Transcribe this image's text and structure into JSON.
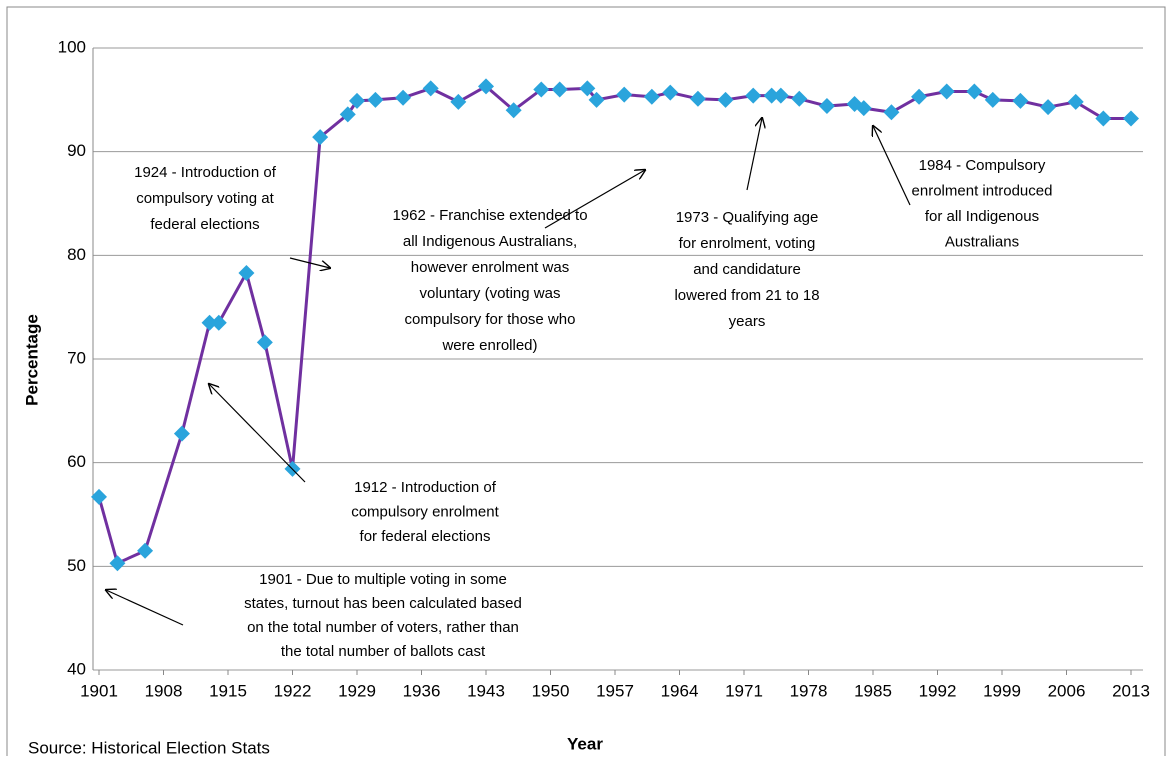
{
  "chart_data": {
    "type": "line",
    "x_label": "Year",
    "y_label": "Percentage",
    "source": "Source: Historical Election Stats",
    "x": [
      1901,
      1903,
      1906,
      1910,
      1913,
      1914,
      1917,
      1919,
      1922,
      1925,
      1928,
      1929,
      1931,
      1934,
      1937,
      1940,
      1943,
      1946,
      1949,
      1951,
      1954,
      1955,
      1958,
      1961,
      1963,
      1966,
      1969,
      1972,
      1974,
      1975,
      1977,
      1980,
      1983,
      1984,
      1987,
      1990,
      1993,
      1996,
      1998,
      2001,
      2004,
      2007,
      2010,
      2013
    ],
    "series": [
      {
        "color": "#7030a0",
        "marker_color": "#2aa4dc",
        "values": [
          56.7,
          50.3,
          51.5,
          62.8,
          73.5,
          73.5,
          78.3,
          71.6,
          59.4,
          91.4,
          93.6,
          94.9,
          95.0,
          95.2,
          96.1,
          94.8,
          96.3,
          94.0,
          96.0,
          96.0,
          96.1,
          95.0,
          95.5,
          95.3,
          95.7,
          95.1,
          95.0,
          95.4,
          95.4,
          95.4,
          95.1,
          94.4,
          94.6,
          94.2,
          93.8,
          95.3,
          95.8,
          95.8,
          95.0,
          94.9,
          94.3,
          94.8,
          93.2,
          93.2
        ]
      }
    ],
    "xlim": [
      1901,
      2013
    ],
    "xticks": [
      1901,
      1908,
      1915,
      1922,
      1929,
      1936,
      1943,
      1950,
      1957,
      1964,
      1971,
      1978,
      1985,
      1992,
      1999,
      2006,
      2013
    ],
    "ylim": [
      40,
      100
    ],
    "yticks": [
      40,
      50,
      60,
      70,
      80,
      90,
      100
    ],
    "grid": true,
    "annotations": [
      {
        "lines": [
          "1924 - Introduction of",
          "compulsory voting at",
          "federal elections"
        ]
      },
      {
        "lines": [
          "1962 - Franchise extended to",
          "all Indigenous Australians,",
          "however enrolment was",
          "voluntary (voting was",
          "compulsory for those who",
          "were enrolled)"
        ]
      },
      {
        "lines": [
          "1973 - Qualifying age",
          "for enrolment, voting",
          "and candidature",
          "lowered from 21 to 18",
          "years"
        ]
      },
      {
        "lines": [
          "1984 - Compulsory",
          "enrolment introduced",
          "for all Indigenous",
          "Australians"
        ]
      },
      {
        "lines": [
          "1912 - Introduction of",
          "compulsory enrolment",
          "for federal elections"
        ]
      },
      {
        "lines": [
          "1901 - Due to multiple voting in some",
          "states, turnout has been calculated based",
          "on the total number of voters, rather than",
          "the total number of ballots cast"
        ]
      }
    ]
  }
}
